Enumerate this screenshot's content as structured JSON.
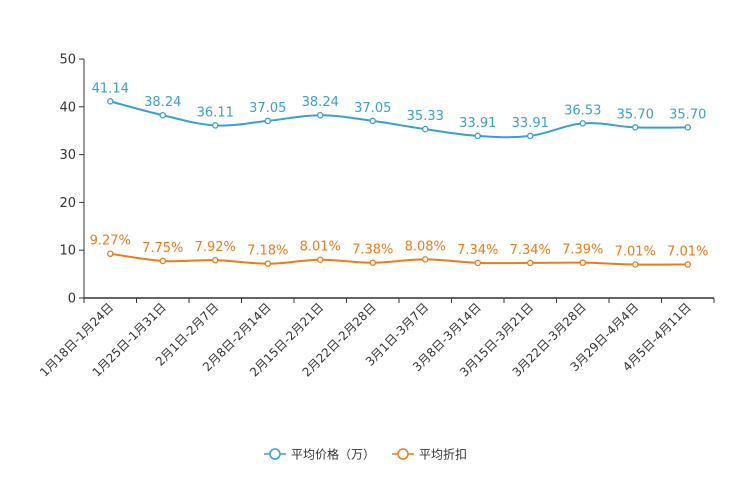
{
  "chart_data": {
    "type": "line",
    "title": "",
    "xlabel": "",
    "ylabel": "",
    "ylim": [
      0,
      50
    ],
    "yticks": [
      0,
      10,
      20,
      30,
      40,
      50
    ],
    "grid": false,
    "legend_position": "bottom-center",
    "categories": [
      "1月18日-1月24日",
      "1月25日-1月31日",
      "2月1日-2月7日",
      "2月8日-2月14日",
      "2月15日-2月21日",
      "2月22日-2月28日",
      "3月1日-3月7日",
      "3月8日-3月14日",
      "3月15日-3月21日",
      "3月22日-3月28日",
      "3月29日-4月4日",
      "4月5日-4月11日"
    ],
    "series": [
      {
        "name": "平均价格（万）",
        "color": "#3a9fcf",
        "values": [
          41.14,
          38.24,
          36.11,
          37.05,
          38.24,
          37.05,
          35.33,
          33.91,
          33.91,
          36.53,
          35.7,
          35.7
        ],
        "labels": [
          "41.14",
          "38.24",
          "36.11",
          "37.05",
          "38.24",
          "37.05",
          "35.33",
          "33.91",
          "33.91",
          "36.53",
          "35.70",
          "35.70"
        ]
      },
      {
        "name": "平均折扣",
        "color": "#f07a1a",
        "values": [
          9.27,
          7.75,
          7.92,
          7.18,
          8.01,
          7.38,
          8.08,
          7.34,
          7.34,
          7.39,
          7.01,
          7.01
        ],
        "labels": [
          "9.27%",
          "7.75%",
          "7.92%",
          "7.18%",
          "8.01%",
          "7.38%",
          "8.08%",
          "7.34%",
          "7.34%",
          "7.39%",
          "7.01%",
          "7.01%"
        ]
      }
    ]
  }
}
